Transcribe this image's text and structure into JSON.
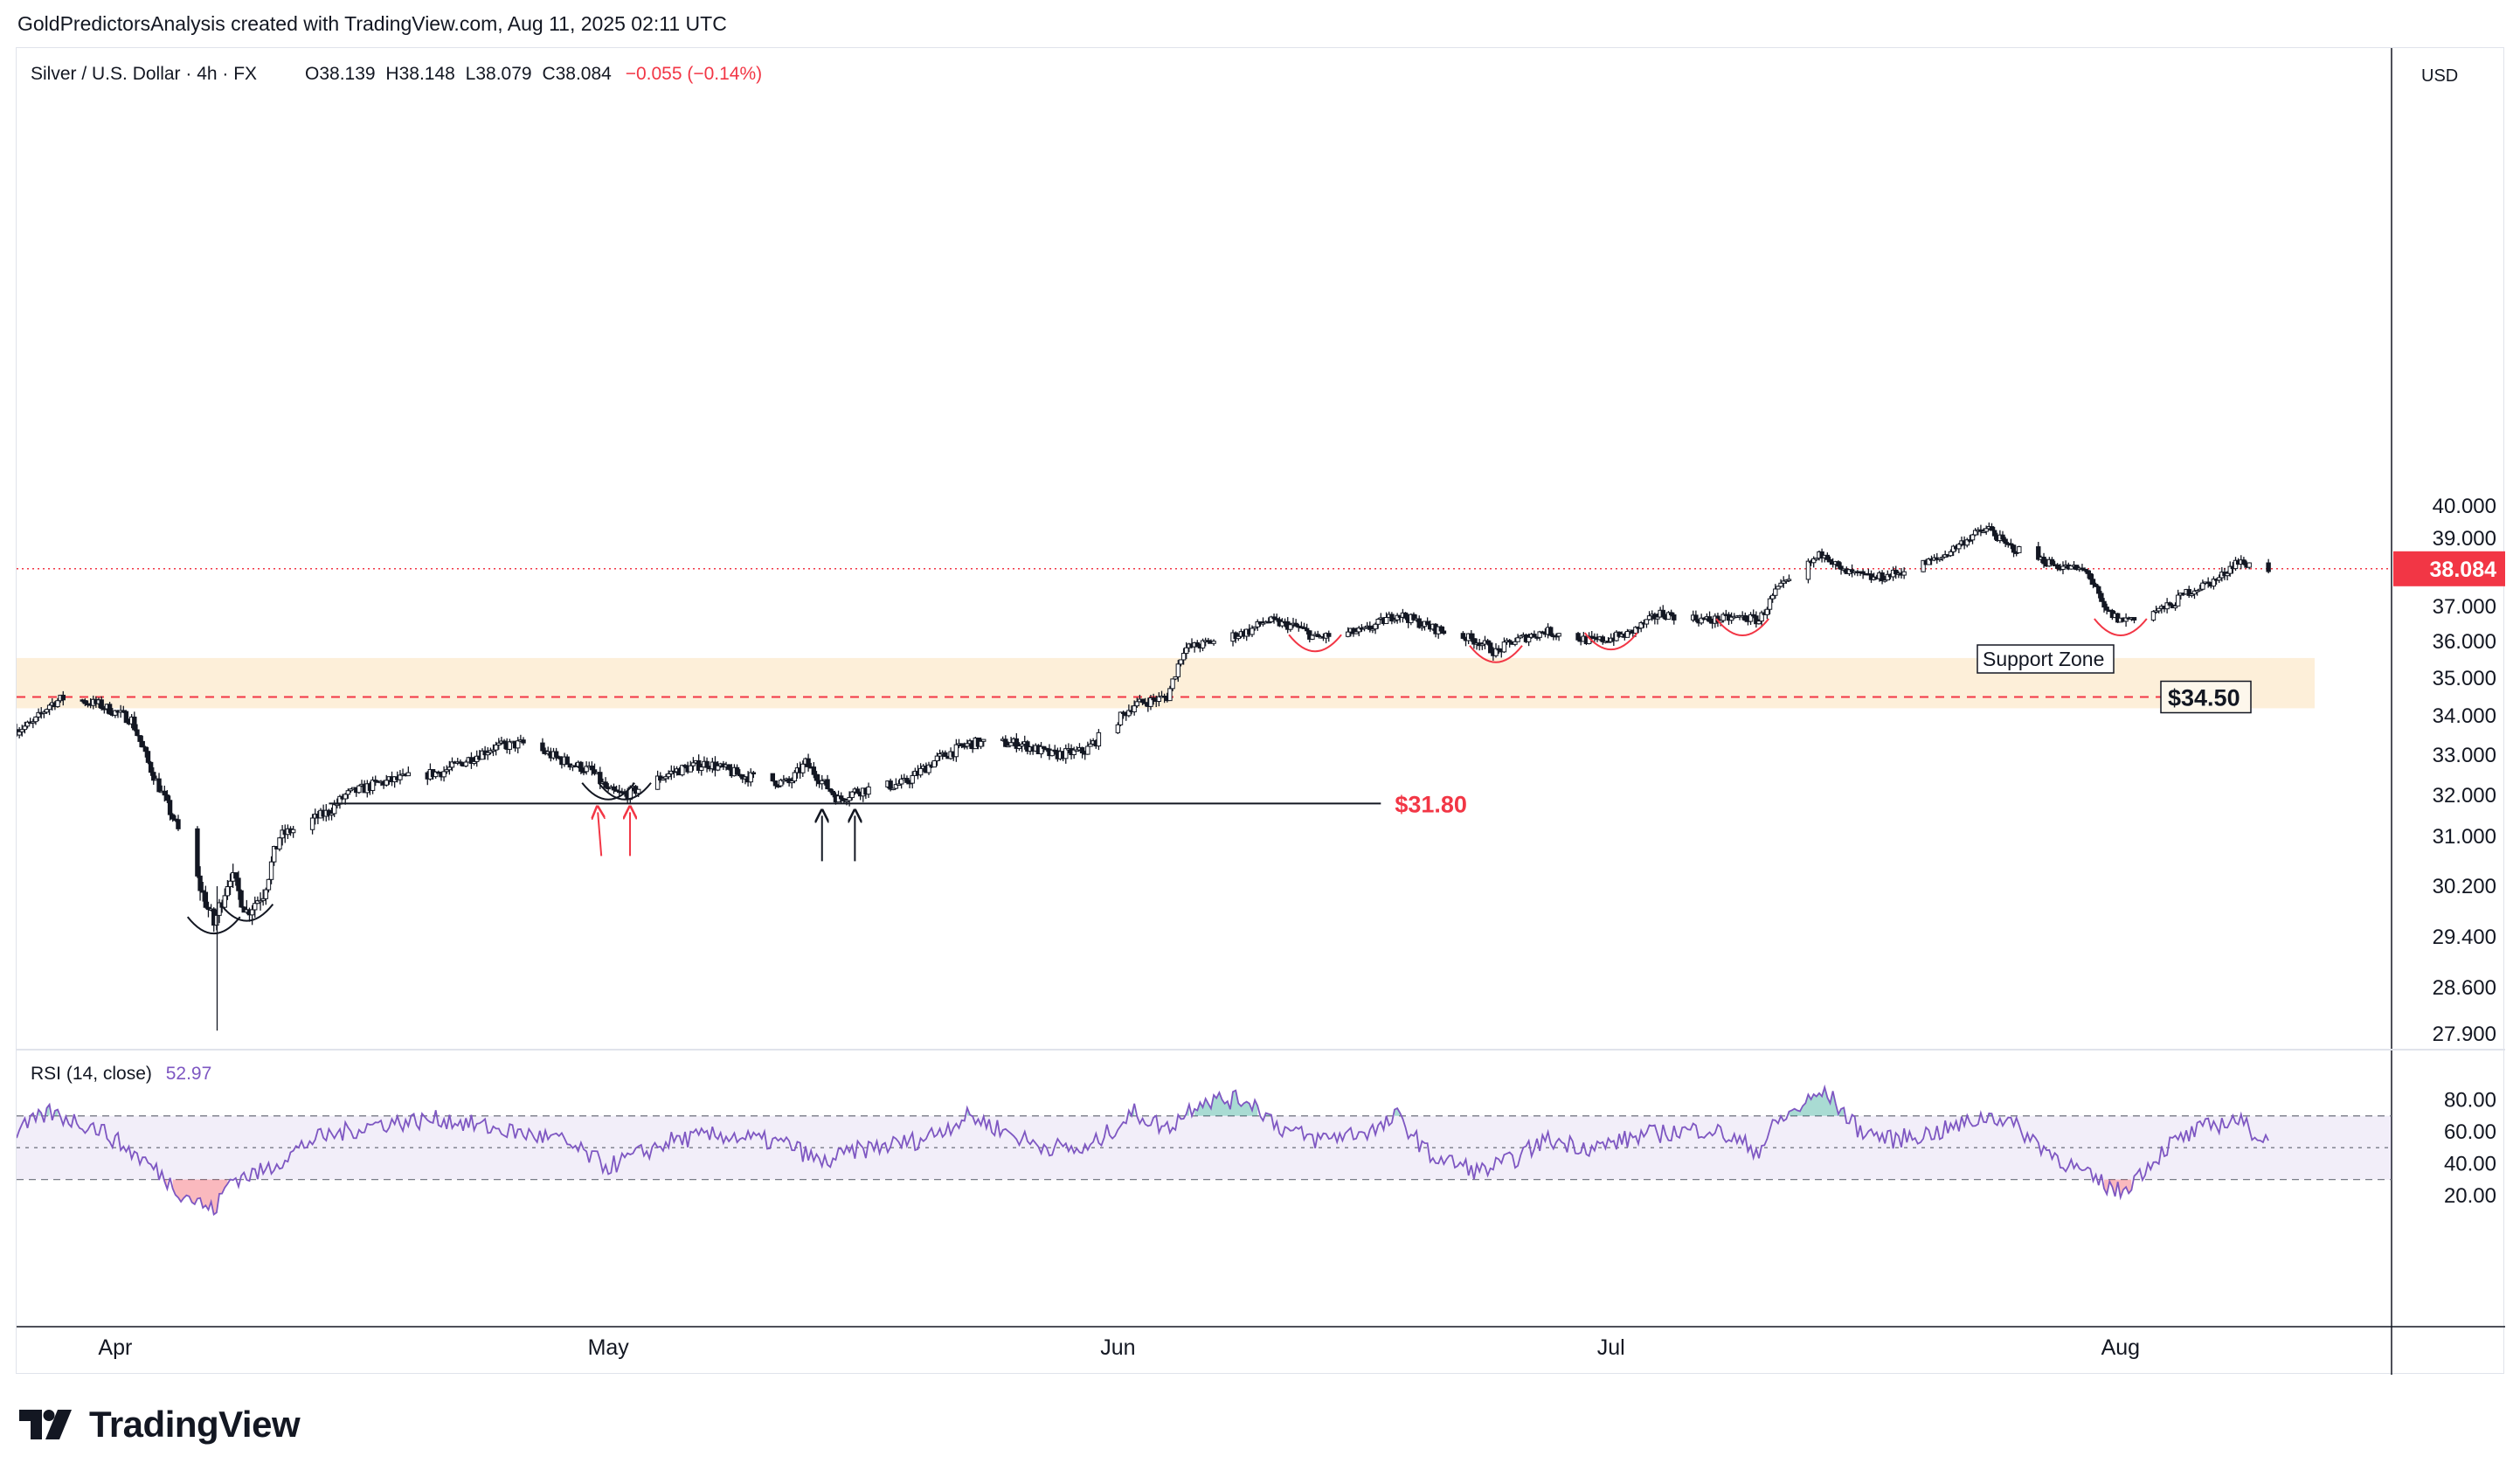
{
  "header": {
    "attribution": "GoldPredictorsAnalysis created with TradingView.com, Aug 11, 2025 02:11 UTC"
  },
  "footer": {
    "brand": "TradingView"
  },
  "colors": {
    "up": "#089981",
    "down": "#f23645",
    "candle": "#131722",
    "rsi": "#7e57c2",
    "support": "#fdefd9",
    "accent_red": "#f23645"
  },
  "chart_data": [
    {
      "type": "candlestick",
      "symbol_line": {
        "name": "Silver / U.S. Dollar · 4h · FX",
        "open_label": "O",
        "open": "38.139",
        "high_label": "H",
        "high": "38.148",
        "low_label": "L",
        "low": "38.079",
        "close_label": "C",
        "close": "38.084",
        "change": "−0.055 (−0.14%)"
      },
      "currency": "USD",
      "y_ticks": [
        27.9,
        28.6,
        29.4,
        30.2,
        31.0,
        32.0,
        33.0,
        34.0,
        35.0,
        36.0,
        37.0,
        38.0,
        39.0,
        40.0
      ],
      "y_tick_labels": [
        "27.900",
        "28.600",
        "29.400",
        "30.200",
        "31.000",
        "32.000",
        "33.000",
        "34.000",
        "35.000",
        "36.000",
        "37.000",
        "38.000",
        "39.000",
        "40.000"
      ],
      "x_ticks": [
        "Apr",
        "May",
        "Jun",
        "Jul",
        "Aug"
      ],
      "x_tick_dates": [
        "2025-04-01",
        "2025-05-01",
        "2025-06-01",
        "2025-07-01",
        "2025-08-01"
      ],
      "x_range": [
        "2025-03-26",
        "2025-08-16"
      ],
      "last_price": "38.084",
      "path_anchors": [
        [
          "2025-03-26",
          33.65
        ],
        [
          "2025-03-27",
          33.8
        ],
        [
          "2025-03-28",
          34.3
        ],
        [
          "2025-03-29",
          34.5
        ],
        [
          "2025-03-31",
          34.3
        ],
        [
          "2025-04-02",
          33.9
        ],
        [
          "2025-04-03",
          32.8
        ],
        [
          "2025-04-04",
          31.9
        ],
        [
          "2025-04-05",
          31.0
        ],
        [
          "2025-04-07",
          29.6
        ],
        [
          "2025-04-08",
          30.4
        ],
        [
          "2025-04-09",
          29.8
        ],
        [
          "2025-04-10",
          30.1
        ],
        [
          "2025-04-11",
          31.0
        ],
        [
          "2025-04-14",
          31.6
        ],
        [
          "2025-04-15",
          32.0
        ],
        [
          "2025-04-17",
          32.3
        ],
        [
          "2025-04-21",
          32.6
        ],
        [
          "2025-04-24",
          33.2
        ],
        [
          "2025-04-26",
          33.3
        ],
        [
          "2025-04-28",
          32.9
        ],
        [
          "2025-04-30",
          32.6
        ],
        [
          "2025-05-01",
          32.1
        ],
        [
          "2025-05-02",
          32.0
        ],
        [
          "2025-05-05",
          32.6
        ],
        [
          "2025-05-07",
          32.8
        ],
        [
          "2025-05-09",
          32.5
        ],
        [
          "2025-05-12",
          32.3
        ],
        [
          "2025-05-13",
          32.8
        ],
        [
          "2025-05-15",
          31.9
        ],
        [
          "2025-05-16",
          32.1
        ],
        [
          "2025-05-19",
          32.3
        ],
        [
          "2025-05-21",
          32.9
        ],
        [
          "2025-05-23",
          33.3
        ],
        [
          "2025-05-26",
          33.3
        ],
        [
          "2025-05-28",
          33.0
        ],
        [
          "2025-05-30",
          33.1
        ],
        [
          "2025-06-02",
          34.3
        ],
        [
          "2025-06-04",
          34.5
        ],
        [
          "2025-06-05",
          35.8
        ],
        [
          "2025-06-06",
          35.9
        ],
        [
          "2025-06-09",
          36.3
        ],
        [
          "2025-06-10",
          36.6
        ],
        [
          "2025-06-12",
          36.4
        ],
        [
          "2025-06-13",
          36.1
        ],
        [
          "2025-06-16",
          36.3
        ],
        [
          "2025-06-18",
          36.8
        ],
        [
          "2025-06-20",
          36.4
        ],
        [
          "2025-06-23",
          36.0
        ],
        [
          "2025-06-24",
          35.7
        ],
        [
          "2025-06-25",
          36.0
        ],
        [
          "2025-06-27",
          36.3
        ],
        [
          "2025-06-30",
          36.0
        ],
        [
          "2025-07-02",
          36.2
        ],
        [
          "2025-07-04",
          36.8
        ],
        [
          "2025-07-07",
          36.6
        ],
        [
          "2025-07-09",
          36.7
        ],
        [
          "2025-07-10",
          36.6
        ],
        [
          "2025-07-11",
          37.4
        ],
        [
          "2025-07-14",
          38.6
        ],
        [
          "2025-07-15",
          38.0
        ],
        [
          "2025-07-17",
          37.8
        ],
        [
          "2025-07-18",
          37.9
        ],
        [
          "2025-07-21",
          38.4
        ],
        [
          "2025-07-23",
          39.1
        ],
        [
          "2025-07-24",
          39.3
        ],
        [
          "2025-07-25",
          38.8
        ],
        [
          "2025-07-28",
          38.2
        ],
        [
          "2025-07-30",
          38.0
        ],
        [
          "2025-07-31",
          36.9
        ],
        [
          "2025-08-01",
          36.6
        ],
        [
          "2025-08-04",
          37.0
        ],
        [
          "2025-08-05",
          37.4
        ],
        [
          "2025-08-07",
          37.8
        ],
        [
          "2025-08-08",
          38.3
        ],
        [
          "2025-08-10",
          38.08
        ]
      ],
      "annotations": [
        {
          "type": "hline",
          "label": "$31.80",
          "value": 31.8,
          "from": "2025-04-14",
          "to": "2025-06-17"
        },
        {
          "type": "zone",
          "label": "Support Zone",
          "from_value": 34.2,
          "to_value": 35.55
        },
        {
          "type": "hline",
          "label": "$34.50",
          "value": 34.5,
          "style": "dashed"
        }
      ],
      "arrow_dates": {
        "red": [
          "2025-05-01",
          "2025-05-02"
        ],
        "black": [
          "2025-05-14",
          "2025-05-16"
        ]
      },
      "arcs": [
        {
          "date": "2025-04-07",
          "value": 29.55,
          "color": "#131722"
        },
        {
          "date": "2025-04-09",
          "value": 29.75,
          "color": "#131722"
        },
        {
          "date": "2025-05-01",
          "value": 32.05,
          "color": "#131722"
        },
        {
          "date": "2025-05-02",
          "value": 32.05,
          "color": "#131722"
        },
        {
          "date": "2025-06-13",
          "value": 35.9,
          "color": "#f23645"
        },
        {
          "date": "2025-06-24",
          "value": 35.6,
          "color": "#f23645"
        },
        {
          "date": "2025-07-01",
          "value": 35.95,
          "color": "#f23645"
        },
        {
          "date": "2025-07-09",
          "value": 36.35,
          "color": "#f23645"
        },
        {
          "date": "2025-08-01",
          "value": 36.35,
          "color": "#f23645"
        }
      ]
    },
    {
      "type": "line",
      "indicator": "RSI",
      "label": "RSI (14, close)",
      "last_value": "52.97",
      "y_ticks": [
        20,
        40,
        60,
        80
      ],
      "y_tick_labels": [
        "20.00",
        "40.00",
        "60.00",
        "80.00"
      ],
      "bands": {
        "upper": 70,
        "middle": 50,
        "lower": 30
      },
      "path_anchors": [
        [
          "2025-03-26",
          60
        ],
        [
          "2025-03-28",
          72
        ],
        [
          "2025-03-31",
          62
        ],
        [
          "2025-04-03",
          40
        ],
        [
          "2025-04-05",
          22
        ],
        [
          "2025-04-07",
          10
        ],
        [
          "2025-04-08",
          30
        ],
        [
          "2025-04-10",
          35
        ],
        [
          "2025-04-13",
          55
        ],
        [
          "2025-04-17",
          65
        ],
        [
          "2025-04-21",
          68
        ],
        [
          "2025-04-24",
          62
        ],
        [
          "2025-04-28",
          55
        ],
        [
          "2025-05-01",
          38
        ],
        [
          "2025-05-05",
          55
        ],
        [
          "2025-05-08",
          58
        ],
        [
          "2025-05-12",
          52
        ],
        [
          "2025-05-14",
          40
        ],
        [
          "2025-05-16",
          48
        ],
        [
          "2025-05-20",
          55
        ],
        [
          "2025-05-23",
          70
        ],
        [
          "2025-05-27",
          52
        ],
        [
          "2025-05-30",
          48
        ],
        [
          "2025-06-02",
          72
        ],
        [
          "2025-06-04",
          62
        ],
        [
          "2025-06-06",
          80
        ],
        [
          "2025-06-09",
          80
        ],
        [
          "2025-06-11",
          62
        ],
        [
          "2025-06-13",
          55
        ],
        [
          "2025-06-17",
          62
        ],
        [
          "2025-06-18",
          70
        ],
        [
          "2025-06-20",
          45
        ],
        [
          "2025-06-23",
          35
        ],
        [
          "2025-06-25",
          42
        ],
        [
          "2025-06-27",
          55
        ],
        [
          "2025-06-30",
          50
        ],
        [
          "2025-07-03",
          58
        ],
        [
          "2025-07-07",
          62
        ],
        [
          "2025-07-10",
          48
        ],
        [
          "2025-07-11",
          65
        ],
        [
          "2025-07-14",
          86
        ],
        [
          "2025-07-16",
          62
        ],
        [
          "2025-07-18",
          55
        ],
        [
          "2025-07-21",
          60
        ],
        [
          "2025-07-24",
          70
        ],
        [
          "2025-07-25",
          68
        ],
        [
          "2025-07-28",
          45
        ],
        [
          "2025-07-30",
          32
        ],
        [
          "2025-08-01",
          22
        ],
        [
          "2025-08-04",
          52
        ],
        [
          "2025-08-06",
          62
        ],
        [
          "2025-08-08",
          68
        ],
        [
          "2025-08-10",
          53
        ]
      ]
    }
  ]
}
